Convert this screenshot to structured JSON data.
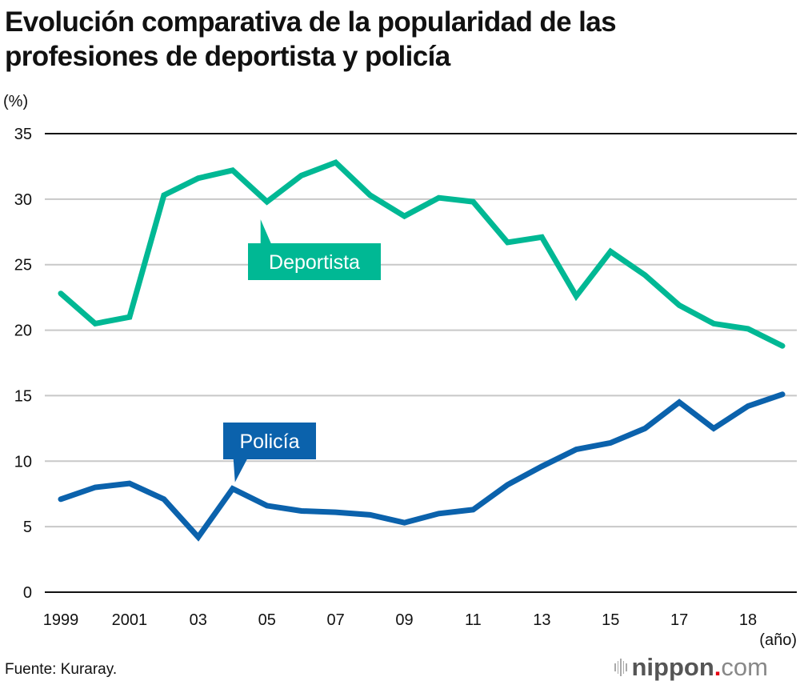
{
  "chart_data": {
    "type": "line",
    "title": "Evolución comparativa de la popularidad de las profesiones de deportista y policía",
    "title_lines": [
      "Evolución comparativa de la popularidad de las",
      "profesiones de deportista y policía"
    ],
    "ylabel": "(%)",
    "xlabel": "(año)",
    "ylim": [
      0,
      35
    ],
    "yticks": [
      0,
      5,
      10,
      15,
      20,
      25,
      30,
      35
    ],
    "grid": true,
    "n_points": 22,
    "x_tick_labels": [
      {
        "index": 0,
        "label": "1999"
      },
      {
        "index": 2,
        "label": "2001"
      },
      {
        "index": 4,
        "label": "03"
      },
      {
        "index": 6,
        "label": "05"
      },
      {
        "index": 8,
        "label": "07"
      },
      {
        "index": 10,
        "label": "09"
      },
      {
        "index": 12,
        "label": "11"
      },
      {
        "index": 14,
        "label": "13"
      },
      {
        "index": 16,
        "label": "15"
      },
      {
        "index": 18,
        "label": "17"
      },
      {
        "index": 20,
        "label": "18"
      }
    ],
    "series": [
      {
        "name": "Deportista",
        "color": "#00b894",
        "label_point_index": 6,
        "values": [
          22.8,
          20.5,
          21.0,
          30.3,
          31.6,
          32.2,
          29.8,
          31.8,
          32.8,
          30.3,
          28.7,
          30.1,
          29.8,
          26.7,
          27.1,
          22.6,
          26.0,
          24.2,
          21.9,
          20.5,
          20.1,
          18.8
        ]
      },
      {
        "name": "Policía",
        "color": "#0b62ac",
        "label_point_index": 5,
        "values": [
          7.1,
          8.0,
          8.3,
          7.1,
          4.2,
          7.9,
          6.6,
          6.2,
          6.1,
          5.9,
          5.3,
          6.0,
          6.3,
          8.2,
          9.6,
          10.9,
          11.4,
          12.5,
          14.5,
          12.5,
          14.2,
          15.1
        ]
      }
    ]
  },
  "footer": {
    "source": "Fuente: Kuraray.",
    "logo_brand": "nippon",
    "logo_dot": ".",
    "logo_tld": "com"
  }
}
